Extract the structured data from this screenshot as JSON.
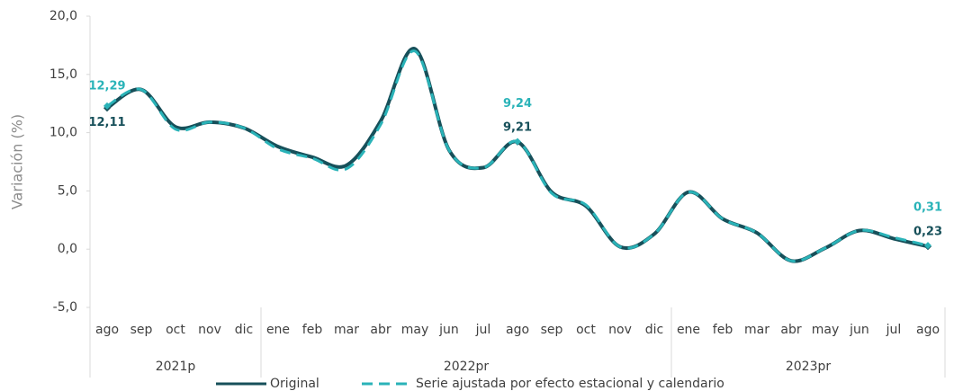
{
  "chart_data": {
    "type": "line",
    "y_label": "Variación (%)",
    "categories": [
      "ago",
      "sep",
      "oct",
      "nov",
      "dic",
      "ene",
      "feb",
      "mar",
      "abr",
      "may",
      "jun",
      "jul",
      "ago",
      "sep",
      "oct",
      "nov",
      "dic",
      "ene",
      "feb",
      "mar",
      "abr",
      "may",
      "jun",
      "jul",
      "ago"
    ],
    "groups": [
      {
        "label": "2021p",
        "span": 5
      },
      {
        "label": "2022pr",
        "span": 12
      },
      {
        "label": "2023pr",
        "span": 8
      }
    ],
    "series": [
      {
        "name": "Original",
        "color": "#17505a",
        "dash": false,
        "values": [
          12.11,
          13.7,
          10.5,
          10.9,
          10.4,
          8.8,
          7.9,
          7.2,
          11.0,
          17.2,
          8.5,
          7.0,
          9.21,
          4.9,
          3.7,
          0.2,
          1.3,
          4.9,
          2.6,
          1.4,
          -1.0,
          0.1,
          1.6,
          0.9,
          0.23
        ],
        "value_labels": [
          "12,11",
          null,
          null,
          null,
          null,
          null,
          null,
          null,
          null,
          null,
          null,
          null,
          "9,21",
          null,
          null,
          null,
          null,
          null,
          null,
          null,
          null,
          null,
          null,
          null,
          "0,23"
        ]
      },
      {
        "name": "Serie ajustada por efecto estacional y calendario",
        "color": "#2ab3b8",
        "dash": true,
        "values": [
          12.29,
          13.7,
          10.3,
          10.9,
          10.4,
          8.6,
          7.8,
          6.9,
          10.7,
          17.0,
          8.5,
          7.0,
          9.24,
          4.8,
          3.8,
          0.2,
          1.3,
          4.9,
          2.6,
          1.4,
          -1.0,
          0.1,
          1.6,
          1.0,
          0.31
        ],
        "value_labels": [
          "12,29",
          null,
          null,
          null,
          null,
          null,
          null,
          null,
          null,
          null,
          null,
          null,
          "9,24",
          null,
          null,
          null,
          null,
          null,
          null,
          null,
          null,
          null,
          null,
          null,
          "0,31"
        ]
      }
    ],
    "ylim": [
      -5,
      20
    ],
    "yticks": [
      {
        "value": -5,
        "label": "-5,0"
      },
      {
        "value": 0,
        "label": "0,0"
      },
      {
        "value": 5,
        "label": "5,0"
      },
      {
        "value": 10,
        "label": "10,0"
      },
      {
        "value": 15,
        "label": "15,0"
      },
      {
        "value": 20,
        "label": "20,0"
      }
    ],
    "grid": false
  }
}
